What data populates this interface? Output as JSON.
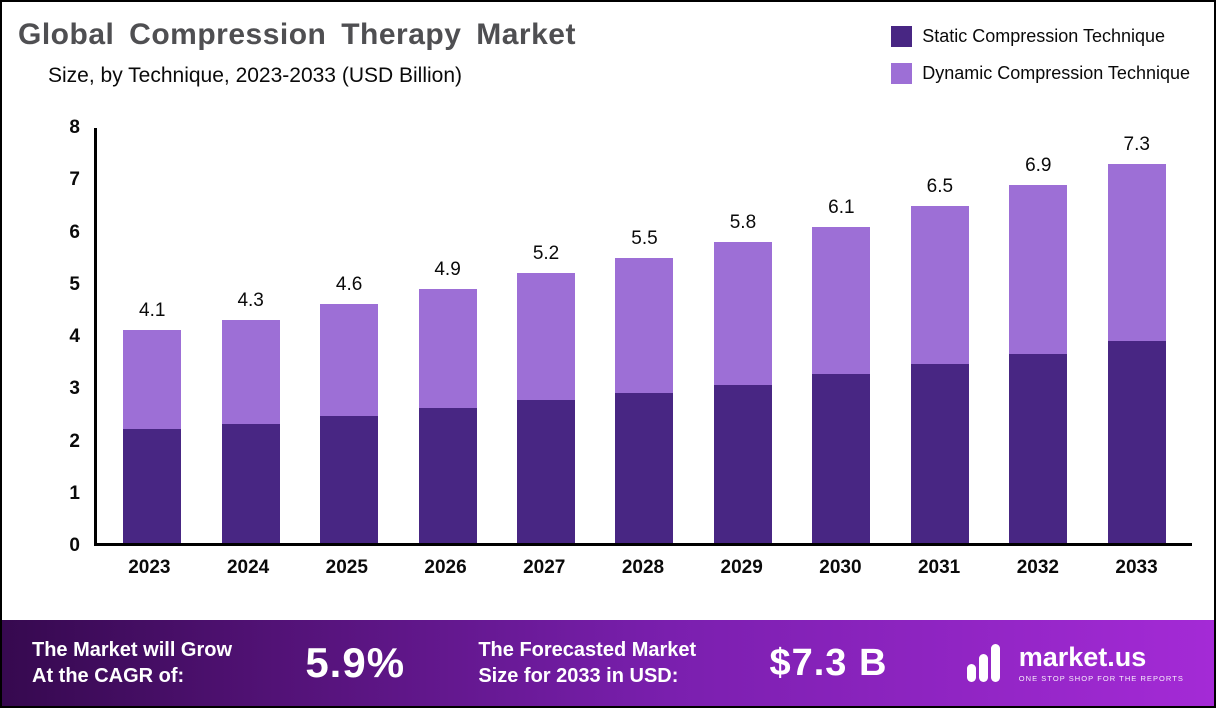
{
  "header": {
    "title": "Global Compression Therapy Market",
    "subtitle": "Size, by Technique, 2023-2033 (USD Billion)"
  },
  "legend": [
    {
      "label": "Static Compression Technique",
      "color": "#482683"
    },
    {
      "label": "Dynamic Compression Technique",
      "color": "#9d6fd6"
    }
  ],
  "chart_data": {
    "type": "bar",
    "stacked": true,
    "title": "Global Compression Therapy Market Size, by Technique, 2023-2033 (USD Billion)",
    "categories": [
      "2023",
      "2024",
      "2025",
      "2026",
      "2027",
      "2028",
      "2029",
      "2030",
      "2031",
      "2032",
      "2033"
    ],
    "series": [
      {
        "name": "Static Compression Technique",
        "color": "#482683",
        "values": [
          2.2,
          2.3,
          2.45,
          2.6,
          2.75,
          2.9,
          3.05,
          3.25,
          3.45,
          3.65,
          3.9
        ]
      },
      {
        "name": "Dynamic Compression Technique",
        "color": "#9d6fd6",
        "values": [
          1.9,
          2.0,
          2.15,
          2.3,
          2.45,
          2.6,
          2.75,
          2.85,
          3.05,
          3.25,
          3.4
        ]
      }
    ],
    "totals": [
      4.1,
      4.3,
      4.6,
      4.9,
      5.2,
      5.5,
      5.8,
      6.1,
      6.5,
      6.9,
      7.3
    ],
    "xlabel": "",
    "ylabel": "",
    "ylim": [
      0,
      8
    ],
    "yticks": [
      8,
      7,
      6,
      5,
      4,
      3,
      2,
      1,
      0
    ],
    "grid": false,
    "legend_position": "top-right"
  },
  "footer": {
    "cagr_label_line1": "The Market will Grow",
    "cagr_label_line2": "At the CAGR of:",
    "cagr_value": "5.9%",
    "forecast_label_line1": "The Forecasted Market",
    "forecast_label_line2": "Size for 2033 in USD:",
    "forecast_value": "$7.3 B",
    "brand": "market.us",
    "brand_tagline": "ONE STOP SHOP FOR THE REPORTS",
    "gradient": [
      "#36094f",
      "#7a1fae",
      "#a42ad6"
    ]
  }
}
